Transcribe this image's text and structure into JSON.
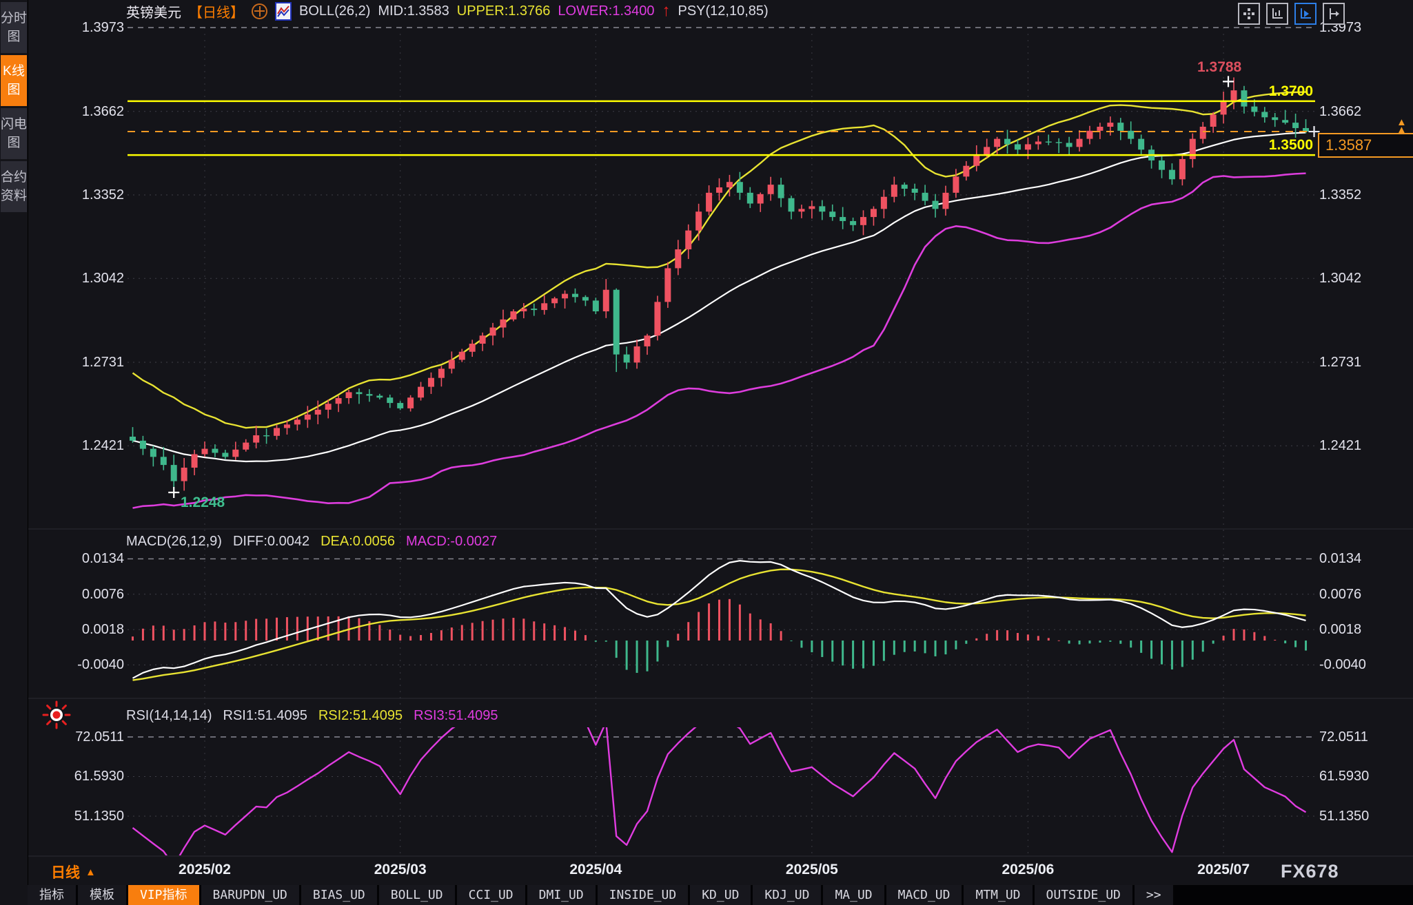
{
  "window": {
    "watermark": "FX678"
  },
  "sidebar": {
    "items": [
      {
        "label": "分时图",
        "active": false
      },
      {
        "label": "K线图",
        "active": true
      },
      {
        "label": "闪电图",
        "active": false
      },
      {
        "label": "合约资料",
        "active": false
      }
    ]
  },
  "header": {
    "symbol": "英镑美元",
    "period_tag": "【日线】",
    "boll": "BOLL(26,2)",
    "mid": "MID:1.3583",
    "upper": "UPPER:1.3766",
    "lower": "LOWER:1.3400",
    "arrow": "↑",
    "psy": "PSY(12,10,85)"
  },
  "toolbar": {
    "icons": [
      {
        "name": "pan-icon",
        "active": false
      },
      {
        "name": "axis-scale-icon",
        "active": false
      },
      {
        "name": "axis-play-icon",
        "active": true
      },
      {
        "name": "axis-shift-icon",
        "active": false
      }
    ]
  },
  "macd_header": {
    "label": "MACD(26,12,9)",
    "diff": "DIFF:0.0042",
    "dea": "DEA:0.0056",
    "macd": "MACD:-0.0027"
  },
  "rsi_header": {
    "label": "RSI(14,14,14)",
    "rsi1": "RSI1:51.4095",
    "rsi2": "RSI2:51.4095",
    "rsi3": "RSI3:51.4095"
  },
  "price_markers": {
    "high": "1.3788",
    "low": "1.2248",
    "hline1": "1.3700",
    "hline2": "1.3500",
    "current": "1.3587"
  },
  "xaxis": {
    "period_label": "日线",
    "period_arrow": "▲"
  },
  "tabs": [
    {
      "label": "指标",
      "active": false
    },
    {
      "label": "模板",
      "active": false
    },
    {
      "label": "VIP指标",
      "active": true
    },
    {
      "label": "BARUPDN_UD",
      "active": false
    },
    {
      "label": "BIAS_UD",
      "active": false
    },
    {
      "label": "BOLL_UD",
      "active": false
    },
    {
      "label": "CCI_UD",
      "active": false
    },
    {
      "label": "DMI_UD",
      "active": false
    },
    {
      "label": "INSIDE_UD",
      "active": false
    },
    {
      "label": "KD_UD",
      "active": false
    },
    {
      "label": "KDJ_UD",
      "active": false
    },
    {
      "label": "MA_UD",
      "active": false
    },
    {
      "label": "MACD_UD",
      "active": false
    },
    {
      "label": "MTM_UD",
      "active": false
    },
    {
      "label": "OUTSIDE_UD",
      "active": false
    },
    {
      "label": "&gt;&gt;",
      "plain": ">>",
      "active": false
    }
  ],
  "colors": {
    "up": "#ef5261",
    "down": "#3fb88c",
    "boll_upper": "#e8e332",
    "boll_mid": "#ffffff",
    "boll_lower": "#dd3ddd",
    "hline": "#ffff00",
    "current_line": "#f59a23",
    "high_label": "#dd4f5e",
    "low_label": "#3fbf8f",
    "grid": "#3f3f48",
    "grid_bright": "#8a8a94",
    "rsi_line": "#e03ce0",
    "macd_diff": "#ffffff",
    "macd_dea": "#e8e332"
  },
  "chart_data": {
    "type": "candlestick",
    "title": "英镑美元 日线 (GBP/USD daily with BOLL(26,2), MACD(26,12,9), RSI(14))",
    "x_month_labels": [
      "2025/02",
      "2025/03",
      "2025/04",
      "2025/05",
      "2025/06",
      "2025/07"
    ],
    "x_month_indices": [
      7,
      26,
      45,
      66,
      87,
      106
    ],
    "main_y_ticks": [
      "1.3973",
      "1.3662",
      "1.3352",
      "1.3042",
      "1.2731",
      "1.2421"
    ],
    "main_y_tick_values": [
      1.3973,
      1.3662,
      1.3352,
      1.3042,
      1.2731,
      1.2421
    ],
    "macd_y_ticks": [
      "0.0134",
      "0.0076",
      "0.0018",
      "-0.0040"
    ],
    "macd_y_tick_values": [
      0.0134,
      0.0076,
      0.0018,
      -0.004
    ],
    "rsi_y_ticks": [
      "72.0511",
      "61.5930",
      "51.1350"
    ],
    "rsi_y_tick_values": [
      72.0511,
      61.593,
      51.135
    ],
    "closes": [
      1.244,
      1.241,
      1.238,
      1.235,
      1.229,
      1.234,
      1.239,
      1.241,
      1.2395,
      1.238,
      1.2407,
      1.2433,
      1.246,
      1.2458,
      1.2487,
      1.25,
      1.2518,
      1.2537,
      1.2555,
      1.2577,
      1.2598,
      1.262,
      1.2613,
      1.2607,
      1.26,
      1.258,
      1.256,
      1.26,
      1.264,
      1.2673,
      1.2707,
      1.274,
      1.277,
      1.28,
      1.283,
      1.286,
      1.289,
      1.292,
      1.293,
      1.2925,
      1.295,
      1.2968,
      1.2985,
      1.2973,
      1.296,
      1.292,
      1.3,
      1.276,
      1.273,
      1.279,
      1.283,
      1.2955,
      1.308,
      1.315,
      1.322,
      1.329,
      1.336,
      1.338,
      1.34,
      1.336,
      1.332,
      1.3355,
      1.339,
      1.334,
      1.329,
      1.33,
      1.331,
      1.329,
      1.327,
      1.3255,
      1.324,
      1.327,
      1.33,
      1.3345,
      1.339,
      1.3375,
      1.336,
      1.333,
      1.33,
      1.336,
      1.342,
      1.346,
      1.35,
      1.353,
      1.356,
      1.354,
      1.352,
      1.354,
      1.355,
      1.3548,
      1.3545,
      1.353,
      1.356,
      1.359,
      1.3605,
      1.362,
      1.359,
      1.356,
      1.352,
      1.348,
      1.3445,
      1.341,
      1.3485,
      1.356,
      1.3605,
      1.365,
      1.37,
      1.374,
      1.368,
      1.366,
      1.364,
      1.363,
      1.362,
      1.36,
      1.3587
    ],
    "first_open": 1.2455,
    "indicator_seed": {
      "from": 1.265,
      "to": 1.223,
      "count": 25
    },
    "boll": {
      "window": 26,
      "mult": 2,
      "mid": 1.3583,
      "upper": 1.3766,
      "lower": 1.34
    },
    "macd": {
      "fast": 12,
      "slow": 26,
      "signal": 9,
      "diff": 0.0042,
      "dea": 0.0056,
      "macd": -0.0027
    },
    "rsi": {
      "period": 14,
      "rsi1": 51.4095,
      "rsi2": 51.4095,
      "rsi3": 51.4095
    },
    "hlines": [
      {
        "value": 1.37,
        "label": "1.3700"
      },
      {
        "value": 1.35,
        "label": "1.3500"
      }
    ],
    "current_price": {
      "value": 1.3587,
      "label": "1.3587"
    },
    "markers": {
      "high": {
        "index": 107,
        "price": 1.3788,
        "label": "1.3788"
      },
      "low": {
        "index": 4,
        "price": 1.2248,
        "label": "1.2248"
      }
    },
    "wick_overrides": {
      "4": {
        "low": 1.2248
      },
      "46": {
        "high": 1.304
      },
      "47": {
        "low": 1.2695,
        "high": 1.3005
      },
      "107": {
        "high": 1.3788
      }
    }
  }
}
